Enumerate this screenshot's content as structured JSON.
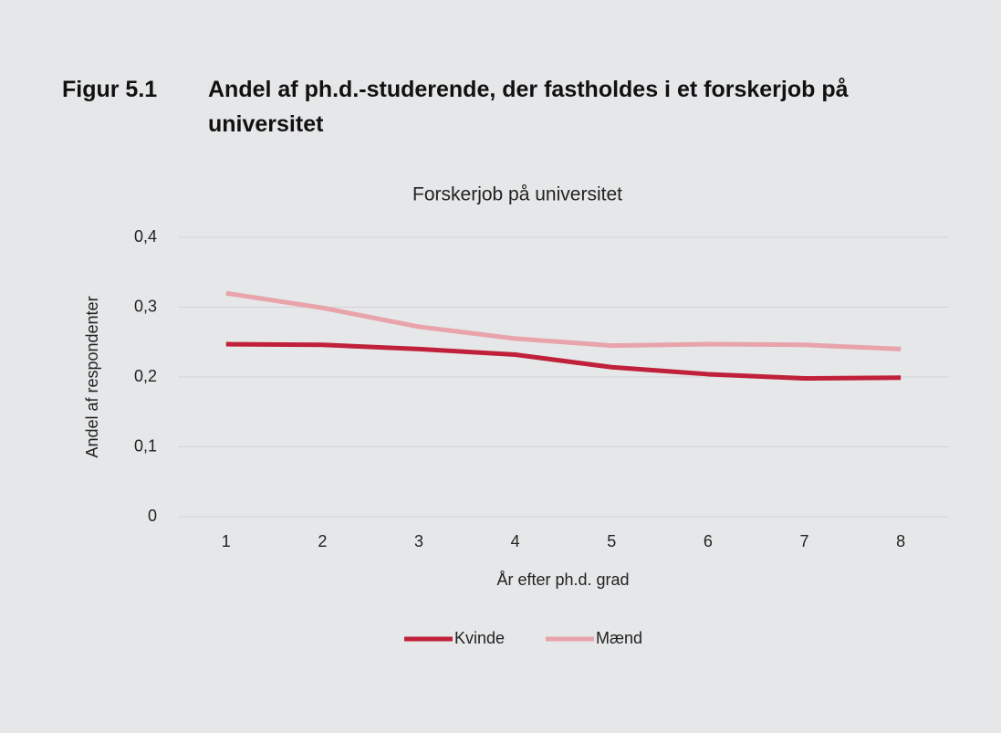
{
  "header": {
    "label": "Figur 5.1",
    "title": "Andel af ph.d.-studerende, der fastholdes i et forskerjob på universitet"
  },
  "chart_data": {
    "type": "line",
    "title": "Forskerjob på universitet",
    "x_label": "År efter ph.d. grad",
    "y_label": "Andel af respondenter",
    "categories": [
      "1",
      "2",
      "3",
      "4",
      "5",
      "6",
      "7",
      "8"
    ],
    "series": [
      {
        "name": "Kvinde",
        "color": "#c0203a",
        "values": [
          0.247,
          0.246,
          0.24,
          0.232,
          0.214,
          0.204,
          0.198,
          0.199
        ]
      },
      {
        "name": "Mænd",
        "color": "#e8a3ab",
        "values": [
          0.32,
          0.299,
          0.272,
          0.255,
          0.245,
          0.247,
          0.246,
          0.24
        ]
      }
    ],
    "ylim": [
      0,
      0.4
    ],
    "yticks": [
      0,
      {
        "value": 0.1,
        "label": "0,1"
      },
      {
        "value": 0.2,
        "label": "0,2"
      },
      {
        "value": 0.3,
        "label": "0,3"
      },
      {
        "value": 0.4,
        "label": "0,4"
      }
    ],
    "grid": true,
    "legend": "bottom"
  }
}
